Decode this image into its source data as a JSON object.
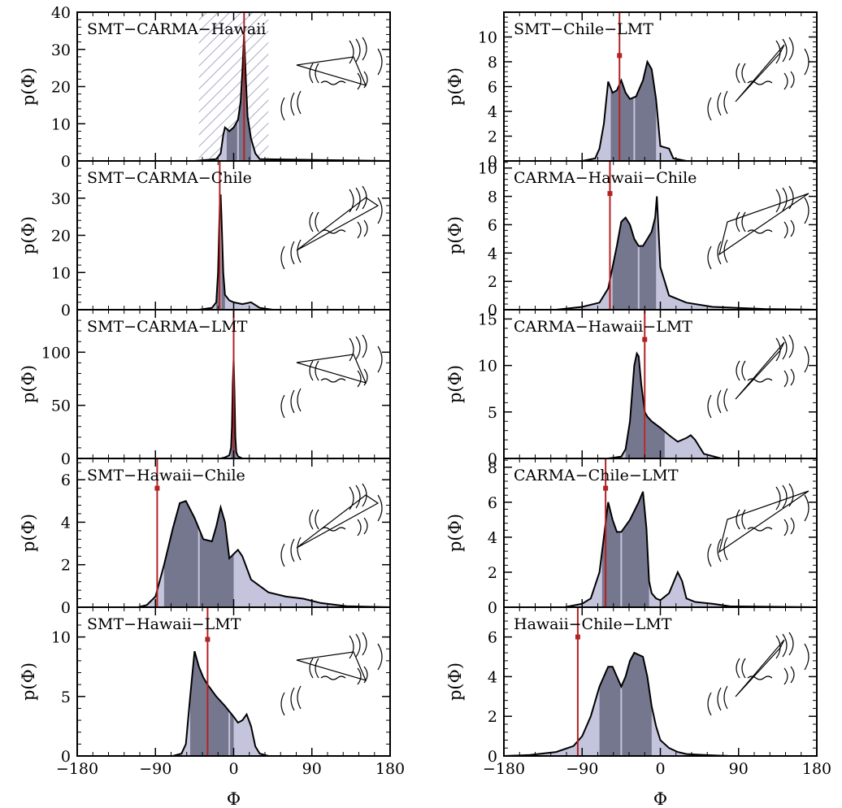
{
  "figure": {
    "x_label": "Φ",
    "y_label": "p(Φ)",
    "x_ticks": [
      -180,
      -90,
      0,
      90,
      180
    ],
    "x_tick_labels": [
      "−180",
      "−90",
      "0",
      "90",
      "180"
    ]
  },
  "colors": {
    "outer_fill": "#c4c5dc",
    "inner_fill": "#75778f",
    "outline": "#000000",
    "measured_line": "#b22222",
    "hatch": "#a9a8c7"
  },
  "chart_data": [
    {
      "type": "area",
      "title": "SMT−CARMA−Hawaii",
      "xlim": [
        -180,
        180
      ],
      "ylim": [
        0,
        40
      ],
      "y_ticks": [
        0,
        10,
        20,
        30,
        40
      ],
      "measured": 12,
      "hatch_range": [
        -40,
        40
      ],
      "inner_range": [
        -8,
        20
      ],
      "median": 5,
      "x": [
        -180,
        -45,
        -20,
        -15,
        -12,
        -10,
        -5,
        0,
        5,
        8,
        10,
        12,
        14,
        16,
        20,
        25,
        30,
        180
      ],
      "y": [
        0,
        0,
        0.5,
        2,
        7,
        9,
        8,
        9,
        11,
        16,
        24,
        34,
        22,
        12,
        6,
        2,
        0.5,
        0
      ]
    },
    {
      "type": "area",
      "title": "SMT−Chile−LMT",
      "xlim": [
        -180,
        180
      ],
      "ylim": [
        0,
        12
      ],
      "y_ticks": [
        0,
        2,
        4,
        6,
        8,
        10
      ],
      "measured": -47,
      "measured_marker": 8.5,
      "inner_range": [
        -57,
        -5
      ],
      "median": -30,
      "x": [
        -180,
        -90,
        -75,
        -70,
        -65,
        -60,
        -55,
        -50,
        -45,
        -40,
        -35,
        -28,
        -20,
        -15,
        -10,
        -5,
        0,
        10,
        15,
        30,
        180
      ],
      "y": [
        0,
        0,
        0.2,
        1,
        3,
        6.4,
        5.5,
        5.7,
        6.5,
        5.5,
        5,
        5.2,
        6.5,
        8,
        7.4,
        5,
        1.2,
        1,
        0.2,
        0,
        0
      ]
    },
    {
      "type": "area",
      "title": "SMT−CARMA−Chile",
      "xlim": [
        -180,
        180
      ],
      "ylim": [
        0,
        40
      ],
      "y_ticks": [
        0,
        10,
        20,
        30
      ],
      "measured": -16,
      "inner_range": [
        -20,
        -10
      ],
      "median": -15,
      "x": [
        -180,
        -40,
        -25,
        -20,
        -18,
        -16,
        -15,
        -14,
        -12,
        -10,
        -5,
        0,
        10,
        20,
        30,
        45,
        180
      ],
      "y": [
        0,
        0,
        0.5,
        2,
        10,
        28,
        31,
        25,
        10,
        4,
        2.5,
        2,
        1.5,
        2,
        0.5,
        0,
        0
      ]
    },
    {
      "type": "area",
      "title": "CARMA−Hawaii−Chile",
      "xlim": [
        -180,
        180
      ],
      "ylim": [
        0,
        10.5
      ],
      "y_ticks": [
        0,
        2,
        4,
        6,
        8,
        10
      ],
      "measured": -58,
      "measured_marker": 8.2,
      "inner_range": [
        -55,
        -5
      ],
      "median": -25,
      "x": [
        -180,
        -120,
        -90,
        -70,
        -60,
        -50,
        -45,
        -40,
        -35,
        -30,
        -25,
        -20,
        -15,
        -10,
        -6,
        -4,
        0,
        10,
        30,
        60,
        120,
        180
      ],
      "y": [
        0,
        0,
        0.2,
        0.5,
        1.5,
        4.5,
        6.2,
        6.5,
        6,
        5,
        4.5,
        4.5,
        5,
        5.5,
        6.5,
        8,
        3,
        1,
        0.5,
        0.2,
        0.05,
        0
      ]
    },
    {
      "type": "area",
      "title": "SMT−CARMA−LMT",
      "xlim": [
        -180,
        180
      ],
      "ylim": [
        0,
        140
      ],
      "y_ticks": [
        0,
        50,
        100
      ],
      "measured": 0,
      "inner_range": [
        -3,
        3
      ],
      "median": 0,
      "x": [
        -180,
        -15,
        -10,
        -5,
        -3,
        -2,
        -1,
        0,
        1,
        2,
        3,
        5,
        10,
        180
      ],
      "y": [
        0,
        0,
        1,
        3,
        10,
        30,
        70,
        94,
        60,
        20,
        6,
        2,
        0,
        0
      ]
    },
    {
      "type": "area",
      "title": "CARMA−Hawaii−LMT",
      "xlim": [
        -180,
        180
      ],
      "ylim": [
        0,
        16
      ],
      "y_ticks": [
        0,
        5,
        10,
        15
      ],
      "measured": -18,
      "measured_marker": 12.8,
      "inner_range": [
        -40,
        5
      ],
      "median": -18,
      "x": [
        -180,
        -60,
        -45,
        -40,
        -35,
        -30,
        -27,
        -25,
        -22,
        -18,
        -15,
        -10,
        0,
        10,
        20,
        30,
        35,
        40,
        50,
        70,
        180
      ],
      "y": [
        0,
        0,
        0.2,
        1,
        4,
        10,
        11.3,
        11,
        8,
        5,
        4.5,
        4,
        3.3,
        2.5,
        1.8,
        2.2,
        2.5,
        2,
        0.5,
        0,
        0
      ]
    },
    {
      "type": "area",
      "title": "SMT−Hawaii−Chile",
      "xlim": [
        -180,
        180
      ],
      "ylim": [
        0,
        7
      ],
      "y_ticks": [
        0,
        2,
        4,
        6
      ],
      "measured": -88,
      "measured_marker": 5.6,
      "inner_range": [
        -80,
        0
      ],
      "median": -40,
      "x": [
        -180,
        -110,
        -100,
        -90,
        -80,
        -70,
        -62,
        -55,
        -45,
        -35,
        -25,
        -20,
        -15,
        -10,
        -5,
        0,
        5,
        10,
        20,
        40,
        60,
        80,
        100,
        130,
        180
      ],
      "y": [
        0,
        0,
        0.1,
        0.5,
        2,
        3.7,
        4.9,
        5.0,
        4.2,
        3.2,
        3.1,
        3.8,
        4.7,
        4.0,
        2.3,
        2.5,
        2.7,
        2.4,
        1.3,
        0.7,
        0.5,
        0.4,
        0.2,
        0.05,
        0
      ]
    },
    {
      "type": "area",
      "title": "CARMA−Chile−LMT",
      "xlim": [
        -180,
        180
      ],
      "ylim": [
        0,
        8.5
      ],
      "y_ticks": [
        0,
        2,
        4,
        6,
        8
      ],
      "measured": -63,
      "measured_marker": 6.8,
      "inner_range": [
        -67,
        -13
      ],
      "median": -45,
      "x": [
        -180,
        -110,
        -90,
        -80,
        -70,
        -65,
        -60,
        -55,
        -50,
        -45,
        -35,
        -25,
        -20,
        -16,
        -13,
        -10,
        -5,
        0,
        10,
        20,
        25,
        30,
        40,
        60,
        80,
        180
      ],
      "y": [
        0,
        0,
        0.2,
        0.5,
        2,
        4,
        6.0,
        5,
        4.3,
        4.3,
        5,
        6,
        6.6,
        4.5,
        1.5,
        0.8,
        0.5,
        0.4,
        0.8,
        2.0,
        1.5,
        0.5,
        0.3,
        0.2,
        0.05,
        0
      ]
    },
    {
      "type": "area",
      "title": "SMT−Hawaii−LMT",
      "xlim": [
        -180,
        180
      ],
      "ylim": [
        0,
        12.5
      ],
      "y_ticks": [
        0,
        5,
        10
      ],
      "measured": -30,
      "measured_marker": 9.8,
      "inner_range": [
        -50,
        0
      ],
      "median": -5,
      "x": [
        -180,
        -70,
        -60,
        -55,
        -50,
        -45,
        -40,
        -35,
        -30,
        -20,
        -10,
        0,
        5,
        10,
        15,
        20,
        25,
        30,
        40,
        60,
        180
      ],
      "y": [
        0,
        0,
        0.2,
        1,
        5,
        8.8,
        7.5,
        6.6,
        6,
        5,
        4.2,
        3.3,
        2.8,
        3.0,
        3.5,
        2.5,
        0.8,
        0.2,
        0,
        0,
        0
      ]
    },
    {
      "type": "area",
      "title": "Hawaii−Chile−LMT",
      "xlim": [
        -180,
        180
      ],
      "ylim": [
        0,
        7.5
      ],
      "y_ticks": [
        0,
        2,
        4,
        6
      ],
      "measured": -95,
      "measured_marker": 6.0,
      "inner_range": [
        -70,
        -10
      ],
      "median": -45,
      "x": [
        -180,
        -150,
        -120,
        -100,
        -90,
        -80,
        -70,
        -60,
        -55,
        -50,
        -45,
        -40,
        -35,
        -30,
        -20,
        -15,
        -10,
        -5,
        0,
        10,
        20,
        30,
        50,
        80,
        180
      ],
      "y": [
        0,
        0.05,
        0.2,
        0.5,
        1,
        2,
        3.5,
        4.5,
        4.5,
        4.0,
        3.5,
        4.0,
        4.8,
        5.2,
        5.0,
        4.0,
        2.5,
        1.5,
        0.8,
        0.4,
        0.2,
        0.1,
        0.05,
        0,
        0
      ]
    }
  ]
}
